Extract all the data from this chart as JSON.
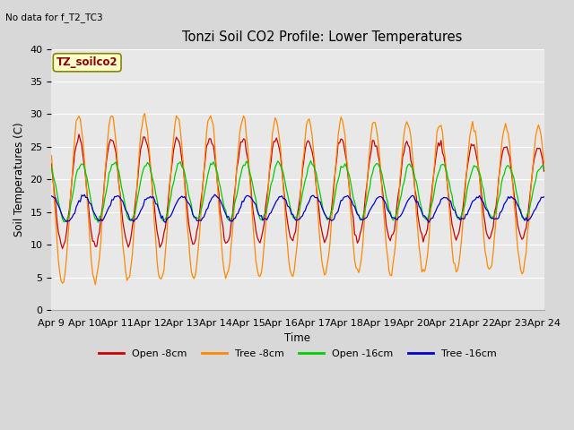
{
  "title": "Tonzi Soil CO2 Profile: Lower Temperatures",
  "subtitle": "No data for f_T2_TC3",
  "ylabel": "Soil Temperatures (C)",
  "xlabel": "Time",
  "annotation": "TZ_soilco2",
  "ylim": [
    0,
    40
  ],
  "yticks": [
    0,
    5,
    10,
    15,
    20,
    25,
    30,
    35,
    40
  ],
  "xtick_labels": [
    "Apr 9",
    "Apr 10",
    "Apr 11",
    "Apr 12",
    "Apr 13",
    "Apr 14",
    "Apr 15",
    "Apr 16",
    "Apr 17",
    "Apr 18",
    "Apr 19",
    "Apr 20",
    "Apr 21",
    "Apr 22",
    "Apr 23",
    "Apr 24"
  ],
  "series_colors": {
    "open_8cm": "#cc0000",
    "tree_8cm": "#ff8800",
    "open_16cm": "#00cc00",
    "tree_16cm": "#0000cc"
  },
  "legend_labels": [
    "Open -8cm",
    "Tree -8cm",
    "Open -16cm",
    "Tree -16cm"
  ],
  "fig_facecolor": "#d8d8d8",
  "ax_facecolor": "#e8e8e8",
  "grid_color": "#ffffff"
}
